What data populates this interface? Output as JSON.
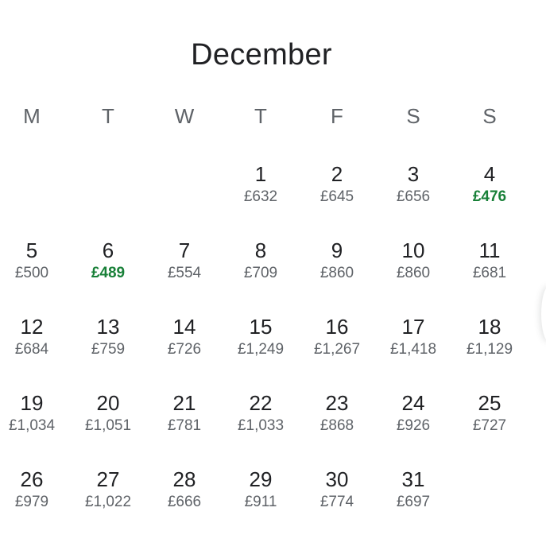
{
  "calendar": {
    "month": "December",
    "weekdays": [
      "M",
      "T",
      "W",
      "T",
      "F",
      "S",
      "S"
    ],
    "low_price_color": "#188038",
    "normal_price_color": "#5f6368",
    "leading_blank_days": 3,
    "days": [
      {
        "day": "1",
        "price": "£632",
        "low": false
      },
      {
        "day": "2",
        "price": "£645",
        "low": false
      },
      {
        "day": "3",
        "price": "£656",
        "low": false
      },
      {
        "day": "4",
        "price": "£476",
        "low": true
      },
      {
        "day": "5",
        "price": "£500",
        "low": false
      },
      {
        "day": "6",
        "price": "£489",
        "low": true
      },
      {
        "day": "7",
        "price": "£554",
        "low": false
      },
      {
        "day": "8",
        "price": "£709",
        "low": false
      },
      {
        "day": "9",
        "price": "£860",
        "low": false
      },
      {
        "day": "10",
        "price": "£860",
        "low": false
      },
      {
        "day": "11",
        "price": "£681",
        "low": false
      },
      {
        "day": "12",
        "price": "£684",
        "low": false
      },
      {
        "day": "13",
        "price": "£759",
        "low": false
      },
      {
        "day": "14",
        "price": "£726",
        "low": false
      },
      {
        "day": "15",
        "price": "£1,249",
        "low": false
      },
      {
        "day": "16",
        "price": "£1,267",
        "low": false
      },
      {
        "day": "17",
        "price": "£1,418",
        "low": false
      },
      {
        "day": "18",
        "price": "£1,129",
        "low": false
      },
      {
        "day": "19",
        "price": "£1,034",
        "low": false
      },
      {
        "day": "20",
        "price": "£1,051",
        "low": false
      },
      {
        "day": "21",
        "price": "£781",
        "low": false
      },
      {
        "day": "22",
        "price": "£1,033",
        "low": false
      },
      {
        "day": "23",
        "price": "£868",
        "low": false
      },
      {
        "day": "24",
        "price": "£926",
        "low": false
      },
      {
        "day": "25",
        "price": "£727",
        "low": false
      },
      {
        "day": "26",
        "price": "£979",
        "low": false
      },
      {
        "day": "27",
        "price": "£1,022",
        "low": false
      },
      {
        "day": "28",
        "price": "£666",
        "low": false
      },
      {
        "day": "29",
        "price": "£911",
        "low": false
      },
      {
        "day": "30",
        "price": "£774",
        "low": false
      },
      {
        "day": "31",
        "price": "£697",
        "low": false
      }
    ]
  }
}
